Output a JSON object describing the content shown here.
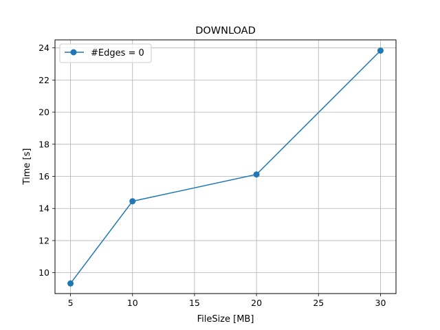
{
  "chart_data": {
    "type": "line",
    "title": "DOWNLOAD",
    "xlabel": "FileSize [MB]",
    "ylabel": "Time [s]",
    "xlim": [
      3.75,
      31.25
    ],
    "ylim": [
      8.7,
      24.5
    ],
    "xticks": [
      5,
      10,
      15,
      20,
      25,
      30
    ],
    "yticks": [
      10,
      12,
      14,
      16,
      18,
      20,
      22,
      24
    ],
    "grid": true,
    "legend_position": "top-left",
    "series": [
      {
        "name": "#Edges = 0",
        "color": "#1f77b4",
        "marker": "circle",
        "x": [
          5,
          10,
          20,
          30
        ],
        "y": [
          9.33,
          14.45,
          16.12,
          23.83
        ]
      }
    ]
  }
}
